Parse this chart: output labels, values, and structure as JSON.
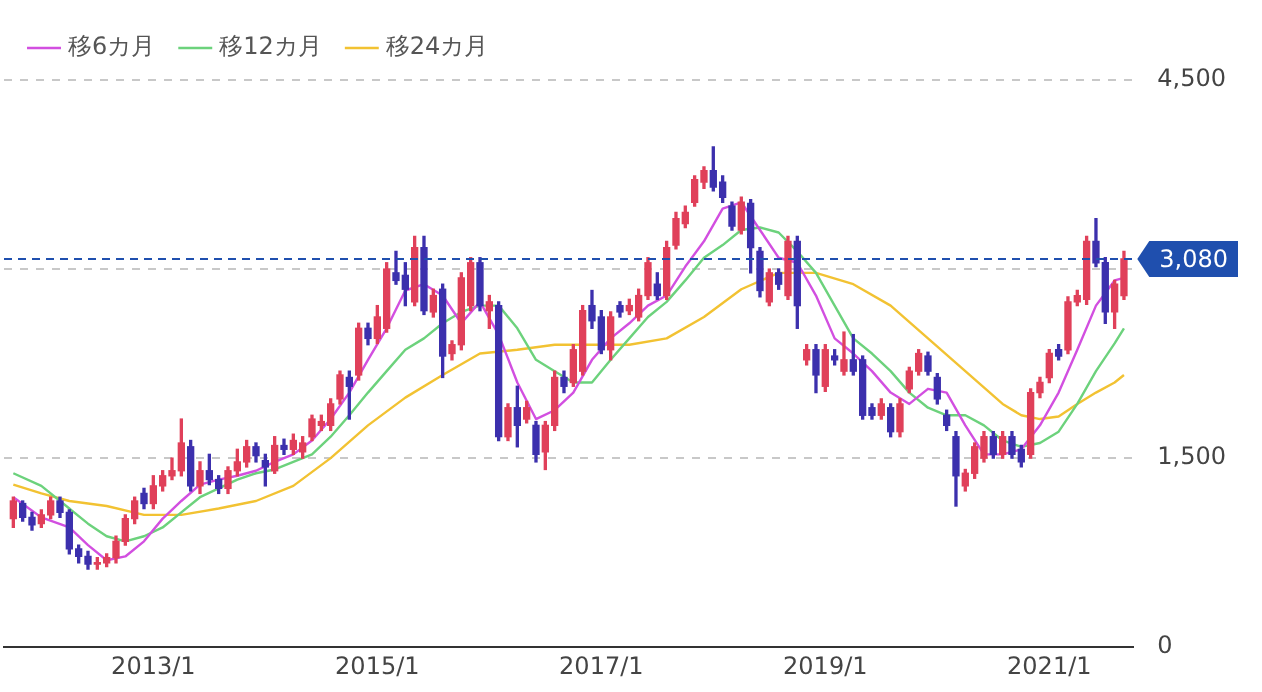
{
  "chart_data": {
    "type": "candlestick",
    "x": [
      "2011-10",
      "2011-11",
      "2011-12",
      "2012-01",
      "2012-02",
      "2012-03",
      "2012-04",
      "2012-05",
      "2012-06",
      "2012-07",
      "2012-08",
      "2012-09",
      "2012-10",
      "2012-11",
      "2012-12",
      "2013-01",
      "2013-02",
      "2013-03",
      "2013-04",
      "2013-05",
      "2013-06",
      "2013-07",
      "2013-08",
      "2013-09",
      "2013-10",
      "2013-11",
      "2013-12",
      "2014-01",
      "2014-02",
      "2014-03",
      "2014-04",
      "2014-05",
      "2014-06",
      "2014-07",
      "2014-08",
      "2014-09",
      "2014-10",
      "2014-11",
      "2014-12",
      "2015-01",
      "2015-02",
      "2015-03",
      "2015-04",
      "2015-05",
      "2015-06",
      "2015-07",
      "2015-08",
      "2015-09",
      "2015-10",
      "2015-11",
      "2015-12",
      "2016-01",
      "2016-02",
      "2016-03",
      "2016-04",
      "2016-05",
      "2016-06",
      "2016-07",
      "2016-08",
      "2016-09",
      "2016-10",
      "2016-11",
      "2016-12",
      "2017-01",
      "2017-02",
      "2017-03",
      "2017-04",
      "2017-05",
      "2017-06",
      "2017-07",
      "2017-08",
      "2017-09",
      "2017-10",
      "2017-11",
      "2017-12",
      "2018-01",
      "2018-02",
      "2018-03",
      "2018-04",
      "2018-05",
      "2018-06",
      "2018-07",
      "2018-08",
      "2018-09",
      "2018-10",
      "2018-11",
      "2018-12",
      "2019-01",
      "2019-02",
      "2019-03",
      "2019-04",
      "2019-05",
      "2019-06",
      "2019-07",
      "2019-08",
      "2019-09",
      "2019-10",
      "2019-11",
      "2019-12",
      "2020-01",
      "2020-02",
      "2020-03",
      "2020-04",
      "2020-05",
      "2020-06",
      "2020-07",
      "2020-08",
      "2020-09",
      "2020-10",
      "2020-11",
      "2020-12",
      "2021-01",
      "2021-02",
      "2021-03",
      "2021-04",
      "2021-05",
      "2021-06",
      "2021-07",
      "2021-08",
      "2021-09"
    ],
    "ohlc": [
      [
        1020,
        1190,
        950,
        1160
      ],
      [
        1140,
        1160,
        1000,
        1030
      ],
      [
        1030,
        1070,
        930,
        970
      ],
      [
        980,
        1090,
        950,
        1050
      ],
      [
        1050,
        1190,
        1020,
        1160
      ],
      [
        1160,
        1190,
        1030,
        1070
      ],
      [
        1070,
        1090,
        740,
        780
      ],
      [
        780,
        810,
        670,
        720
      ],
      [
        720,
        760,
        620,
        660
      ],
      [
        660,
        710,
        620,
        670
      ],
      [
        670,
        740,
        640,
        710
      ],
      [
        710,
        880,
        670,
        840
      ],
      [
        840,
        1050,
        810,
        1020
      ],
      [
        1020,
        1190,
        980,
        1160
      ],
      [
        1220,
        1260,
        1100,
        1140
      ],
      [
        1140,
        1360,
        1100,
        1280
      ],
      [
        1280,
        1400,
        1240,
        1360
      ],
      [
        1360,
        1500,
        1330,
        1400
      ],
      [
        1400,
        1810,
        1360,
        1620
      ],
      [
        1590,
        1640,
        1240,
        1280
      ],
      [
        1280,
        1470,
        1220,
        1400
      ],
      [
        1400,
        1530,
        1290,
        1330
      ],
      [
        1330,
        1360,
        1220,
        1260
      ],
      [
        1260,
        1430,
        1220,
        1400
      ],
      [
        1400,
        1570,
        1360,
        1470
      ],
      [
        1470,
        1640,
        1430,
        1590
      ],
      [
        1590,
        1620,
        1470,
        1520
      ],
      [
        1480,
        1530,
        1280,
        1430
      ],
      [
        1400,
        1670,
        1380,
        1600
      ],
      [
        1600,
        1650,
        1530,
        1570
      ],
      [
        1570,
        1690,
        1530,
        1640
      ],
      [
        1550,
        1670,
        1500,
        1620
      ],
      [
        1670,
        1840,
        1640,
        1810
      ],
      [
        1760,
        1840,
        1720,
        1790
      ],
      [
        1760,
        1970,
        1720,
        1930
      ],
      [
        1970,
        2190,
        1930,
        2160
      ],
      [
        2140,
        2190,
        1810,
        2070
      ],
      [
        2160,
        2570,
        2120,
        2530
      ],
      [
        2530,
        2570,
        2400,
        2450
      ],
      [
        2450,
        2710,
        2410,
        2620
      ],
      [
        2530,
        3050,
        2500,
        3000
      ],
      [
        2970,
        3140,
        2880,
        2910
      ],
      [
        2950,
        3050,
        2710,
        2840
      ],
      [
        2740,
        3260,
        2710,
        3170
      ],
      [
        3170,
        3260,
        2640,
        2670
      ],
      [
        2660,
        2840,
        2620,
        2790
      ],
      [
        2840,
        2880,
        2140,
        2310
      ],
      [
        2330,
        2430,
        2280,
        2400
      ],
      [
        2400,
        2970,
        2360,
        2930
      ],
      [
        2710,
        3090,
        2670,
        3050
      ],
      [
        3050,
        3090,
        2670,
        2710
      ],
      [
        2670,
        2790,
        2530,
        2740
      ],
      [
        2710,
        2740,
        1640,
        1670
      ],
      [
        1670,
        1930,
        1640,
        1900
      ],
      [
        1900,
        2070,
        1590,
        1760
      ],
      [
        1810,
        1950,
        1780,
        1900
      ],
      [
        1760,
        1790,
        1470,
        1530
      ],
      [
        1550,
        1790,
        1410,
        1760
      ],
      [
        1760,
        2190,
        1720,
        2140
      ],
      [
        2140,
        2190,
        2020,
        2070
      ],
      [
        2100,
        2400,
        2070,
        2360
      ],
      [
        2190,
        2710,
        2160,
        2670
      ],
      [
        2710,
        2830,
        2530,
        2590
      ],
      [
        2620,
        2670,
        2330,
        2360
      ],
      [
        2360,
        2660,
        2280,
        2620
      ],
      [
        2710,
        2740,
        2620,
        2660
      ],
      [
        2670,
        2760,
        2640,
        2710
      ],
      [
        2620,
        2840,
        2590,
        2790
      ],
      [
        2790,
        3090,
        2760,
        3050
      ],
      [
        2880,
        2970,
        2760,
        2790
      ],
      [
        2790,
        3220,
        2760,
        3170
      ],
      [
        3190,
        3450,
        3160,
        3400
      ],
      [
        3360,
        3500,
        3330,
        3450
      ],
      [
        3530,
        3740,
        3500,
        3710
      ],
      [
        3690,
        3810,
        3640,
        3780
      ],
      [
        3780,
        3970,
        3620,
        3650
      ],
      [
        3690,
        3740,
        3530,
        3570
      ],
      [
        3500,
        3530,
        3310,
        3340
      ],
      [
        3310,
        3570,
        3280,
        3530
      ],
      [
        3520,
        3550,
        2970,
        3170
      ],
      [
        3140,
        3170,
        2780,
        2830
      ],
      [
        2740,
        3000,
        2710,
        2970
      ],
      [
        2970,
        3000,
        2840,
        2880
      ],
      [
        2790,
        3260,
        2760,
        3220
      ],
      [
        3220,
        3260,
        2530,
        2710
      ],
      [
        2280,
        2400,
        2240,
        2360
      ],
      [
        2360,
        2400,
        2020,
        2160
      ],
      [
        2070,
        2400,
        2030,
        2360
      ],
      [
        2310,
        2360,
        2240,
        2280
      ],
      [
        2190,
        2500,
        2160,
        2280
      ],
      [
        2280,
        2480,
        2160,
        2190
      ],
      [
        2280,
        2310,
        1810,
        1840
      ],
      [
        1900,
        1930,
        1810,
        1840
      ],
      [
        1840,
        1970,
        1810,
        1930
      ],
      [
        1900,
        1930,
        1670,
        1710
      ],
      [
        1710,
        1970,
        1670,
        1930
      ],
      [
        2050,
        2220,
        2020,
        2190
      ],
      [
        2190,
        2360,
        2160,
        2330
      ],
      [
        2310,
        2340,
        2160,
        2190
      ],
      [
        2140,
        2170,
        1930,
        1970
      ],
      [
        1840,
        1880,
        1720,
        1760
      ],
      [
        1670,
        1710,
        1120,
        1360
      ],
      [
        1280,
        1410,
        1240,
        1380
      ],
      [
        1380,
        1620,
        1340,
        1590
      ],
      [
        1500,
        1710,
        1470,
        1670
      ],
      [
        1670,
        1710,
        1500,
        1530
      ],
      [
        1530,
        1710,
        1500,
        1670
      ],
      [
        1670,
        1710,
        1500,
        1530
      ],
      [
        1570,
        1600,
        1430,
        1470
      ],
      [
        1530,
        2050,
        1500,
        2020
      ],
      [
        2020,
        2140,
        1980,
        2100
      ],
      [
        2140,
        2360,
        2100,
        2330
      ],
      [
        2360,
        2400,
        2280,
        2310
      ],
      [
        2360,
        2780,
        2330,
        2740
      ],
      [
        2740,
        2830,
        2710,
        2790
      ],
      [
        2760,
        3260,
        2720,
        3220
      ],
      [
        3220,
        3400,
        3020,
        3050
      ],
      [
        3050,
        3090,
        2570,
        2660
      ],
      [
        2660,
        2910,
        2530,
        2880
      ],
      [
        2790,
        3140,
        2760,
        3080
      ]
    ],
    "colors": [
      "#e0405a",
      "#3c30ad",
      "#3c30ad",
      "#e0405a",
      "#e0405a",
      "#3c30ad",
      "#3c30ad",
      "#3c30ad",
      "#3c30ad",
      "#e0405a",
      "#e0405a",
      "#e0405a",
      "#e0405a",
      "#e0405a",
      "#3c30ad",
      "#e0405a",
      "#e0405a",
      "#e0405a",
      "#e0405a",
      "#3c30ad",
      "#e0405a",
      "#3c30ad",
      "#3c30ad",
      "#e0405a",
      "#e0405a",
      "#e0405a",
      "#3c30ad",
      "#3c30ad",
      "#e0405a",
      "#3c30ad",
      "#e0405a",
      "#e0405a",
      "#e0405a",
      "#e0405a",
      "#e0405a",
      "#e0405a",
      "#3c30ad",
      "#e0405a",
      "#3c30ad",
      "#e0405a",
      "#e0405a",
      "#3c30ad",
      "#3c30ad",
      "#e0405a",
      "#3c30ad",
      "#e0405a",
      "#3c30ad",
      "#e0405a",
      "#e0405a",
      "#e0405a",
      "#3c30ad",
      "#e0405a",
      "#3c30ad",
      "#e0405a",
      "#3c30ad",
      "#e0405a",
      "#3c30ad",
      "#e0405a",
      "#e0405a",
      "#3c30ad",
      "#e0405a",
      "#e0405a",
      "#3c30ad",
      "#3c30ad",
      "#e0405a",
      "#3c30ad",
      "#e0405a",
      "#e0405a",
      "#e0405a",
      "#3c30ad",
      "#e0405a",
      "#e0405a",
      "#e0405a",
      "#e0405a",
      "#e0405a",
      "#3c30ad",
      "#3c30ad",
      "#3c30ad",
      "#e0405a",
      "#3c30ad",
      "#3c30ad",
      "#e0405a",
      "#3c30ad",
      "#e0405a",
      "#3c30ad",
      "#e0405a",
      "#3c30ad",
      "#e0405a",
      "#3c30ad",
      "#e0405a",
      "#3c30ad",
      "#3c30ad",
      "#3c30ad",
      "#e0405a",
      "#3c30ad",
      "#e0405a",
      "#e0405a",
      "#e0405a",
      "#3c30ad",
      "#3c30ad",
      "#3c30ad",
      "#3c30ad",
      "#e0405a",
      "#e0405a",
      "#e0405a",
      "#3c30ad",
      "#e0405a",
      "#3c30ad",
      "#3c30ad",
      "#e0405a",
      "#e0405a",
      "#e0405a",
      "#3c30ad",
      "#e0405a",
      "#e0405a",
      "#e0405a",
      "#3c30ad",
      "#3c30ad",
      "#e0405a",
      "#e0405a"
    ],
    "series": [
      {
        "type": "line",
        "name": "移6カ月",
        "color": "#d24fe0",
        "x": [
          "2011-10",
          "2012-01",
          "2012-04",
          "2012-06",
          "2012-08",
          "2012-10",
          "2012-12",
          "2013-02",
          "2013-04",
          "2013-06",
          "2013-08",
          "2013-10",
          "2013-12",
          "2014-02",
          "2014-04",
          "2014-06",
          "2014-08",
          "2014-10",
          "2014-12",
          "2015-02",
          "2015-04",
          "2015-06",
          "2015-08",
          "2015-10",
          "2015-12",
          "2016-02",
          "2016-04",
          "2016-06",
          "2016-08",
          "2016-10",
          "2016-12",
          "2017-02",
          "2017-04",
          "2017-06",
          "2017-08",
          "2017-10",
          "2017-12",
          "2018-02",
          "2018-04",
          "2018-06",
          "2018-08",
          "2018-10",
          "2018-12",
          "2019-02",
          "2019-04",
          "2019-06",
          "2019-08",
          "2019-10",
          "2019-12",
          "2020-02",
          "2020-04",
          "2020-06",
          "2020-08",
          "2020-10",
          "2020-12",
          "2021-02",
          "2021-04",
          "2021-06",
          "2021-08",
          "2021-09"
        ],
        "values": [
          1190,
          1030,
          950,
          810,
          690,
          720,
          840,
          1020,
          1160,
          1290,
          1330,
          1360,
          1400,
          1470,
          1530,
          1640,
          1810,
          2020,
          2280,
          2530,
          2830,
          2880,
          2790,
          2570,
          2740,
          2480,
          2100,
          1810,
          1880,
          2020,
          2280,
          2450,
          2570,
          2710,
          2790,
          3020,
          3220,
          3480,
          3530,
          3310,
          3090,
          3050,
          2790,
          2450,
          2330,
          2190,
          2020,
          1930,
          2050,
          2020,
          1760,
          1530,
          1530,
          1570,
          1760,
          2020,
          2360,
          2710,
          2910,
          2930
        ]
      },
      {
        "type": "line",
        "name": "移12カ月",
        "color": "#6cd27c",
        "x": [
          "2011-10",
          "2012-01",
          "2012-04",
          "2012-06",
          "2012-08",
          "2012-10",
          "2012-12",
          "2013-02",
          "2013-04",
          "2013-06",
          "2013-08",
          "2013-10",
          "2013-12",
          "2014-02",
          "2014-04",
          "2014-06",
          "2014-08",
          "2014-10",
          "2014-12",
          "2015-02",
          "2015-04",
          "2015-06",
          "2015-08",
          "2015-10",
          "2015-12",
          "2016-02",
          "2016-04",
          "2016-06",
          "2016-08",
          "2016-10",
          "2016-12",
          "2017-02",
          "2017-04",
          "2017-06",
          "2017-08",
          "2017-10",
          "2017-12",
          "2018-02",
          "2018-04",
          "2018-06",
          "2018-08",
          "2018-10",
          "2018-12",
          "2019-02",
          "2019-04",
          "2019-06",
          "2019-08",
          "2019-10",
          "2019-12",
          "2020-02",
          "2020-04",
          "2020-06",
          "2020-08",
          "2020-10",
          "2020-12",
          "2021-02",
          "2021-04",
          "2021-06",
          "2021-08",
          "2021-09"
        ],
        "values": [
          1380,
          1280,
          1100,
          980,
          880,
          840,
          880,
          950,
          1070,
          1190,
          1260,
          1330,
          1380,
          1410,
          1470,
          1530,
          1670,
          1840,
          2020,
          2190,
          2360,
          2450,
          2570,
          2660,
          2710,
          2710,
          2530,
          2280,
          2190,
          2100,
          2100,
          2280,
          2450,
          2620,
          2740,
          2910,
          3090,
          3190,
          3310,
          3330,
          3290,
          3140,
          2970,
          2710,
          2450,
          2330,
          2190,
          2020,
          1900,
          1840,
          1840,
          1760,
          1640,
          1590,
          1620,
          1710,
          1930,
          2190,
          2410,
          2530
        ]
      },
      {
        "type": "line",
        "name": "移24カ月",
        "color": "#f2c232",
        "x": [
          "2011-10",
          "2012-01",
          "2012-04",
          "2012-08",
          "2012-12",
          "2013-04",
          "2013-08",
          "2013-12",
          "2014-04",
          "2014-08",
          "2014-12",
          "2015-04",
          "2015-08",
          "2015-12",
          "2016-04",
          "2016-08",
          "2016-12",
          "2017-04",
          "2017-08",
          "2017-12",
          "2018-04",
          "2018-08",
          "2018-12",
          "2019-04",
          "2019-08",
          "2019-12",
          "2020-04",
          "2020-08",
          "2020-10",
          "2020-12",
          "2021-02",
          "2021-04",
          "2021-06",
          "2021-08",
          "2021-09"
        ],
        "values": [
          1290,
          1220,
          1160,
          1120,
          1050,
          1050,
          1100,
          1160,
          1280,
          1500,
          1760,
          1980,
          2160,
          2330,
          2360,
          2400,
          2400,
          2400,
          2450,
          2620,
          2840,
          2970,
          2970,
          2880,
          2710,
          2450,
          2190,
          1930,
          1840,
          1810,
          1830,
          1930,
          2020,
          2100,
          2160
        ]
      }
    ],
    "xlim": [
      "2011-09",
      "2021-10"
    ],
    "xticks": [
      {
        "value": "2013-01",
        "label": "2013/1"
      },
      {
        "value": "2015-01",
        "label": "2015/1"
      },
      {
        "value": "2017-01",
        "label": "2017/1"
      },
      {
        "value": "2019-01",
        "label": "2019/1"
      },
      {
        "value": "2021-01",
        "label": "2021/1"
      }
    ],
    "ylim": [
      0,
      4500
    ],
    "yticks": [
      0,
      {
        "value": 1500,
        "label": "1,500"
      },
      {
        "value": 3000,
        "label": null
      },
      {
        "value": 4500,
        "label": "4,500"
      }
    ],
    "ref_lines": [
      {
        "axis": "y",
        "value": 3080,
        "label": "3,080",
        "color": "#1f4fae",
        "line_style": "dashed"
      }
    ],
    "grid": "y",
    "legend": "top left",
    "line_style": "solid"
  }
}
